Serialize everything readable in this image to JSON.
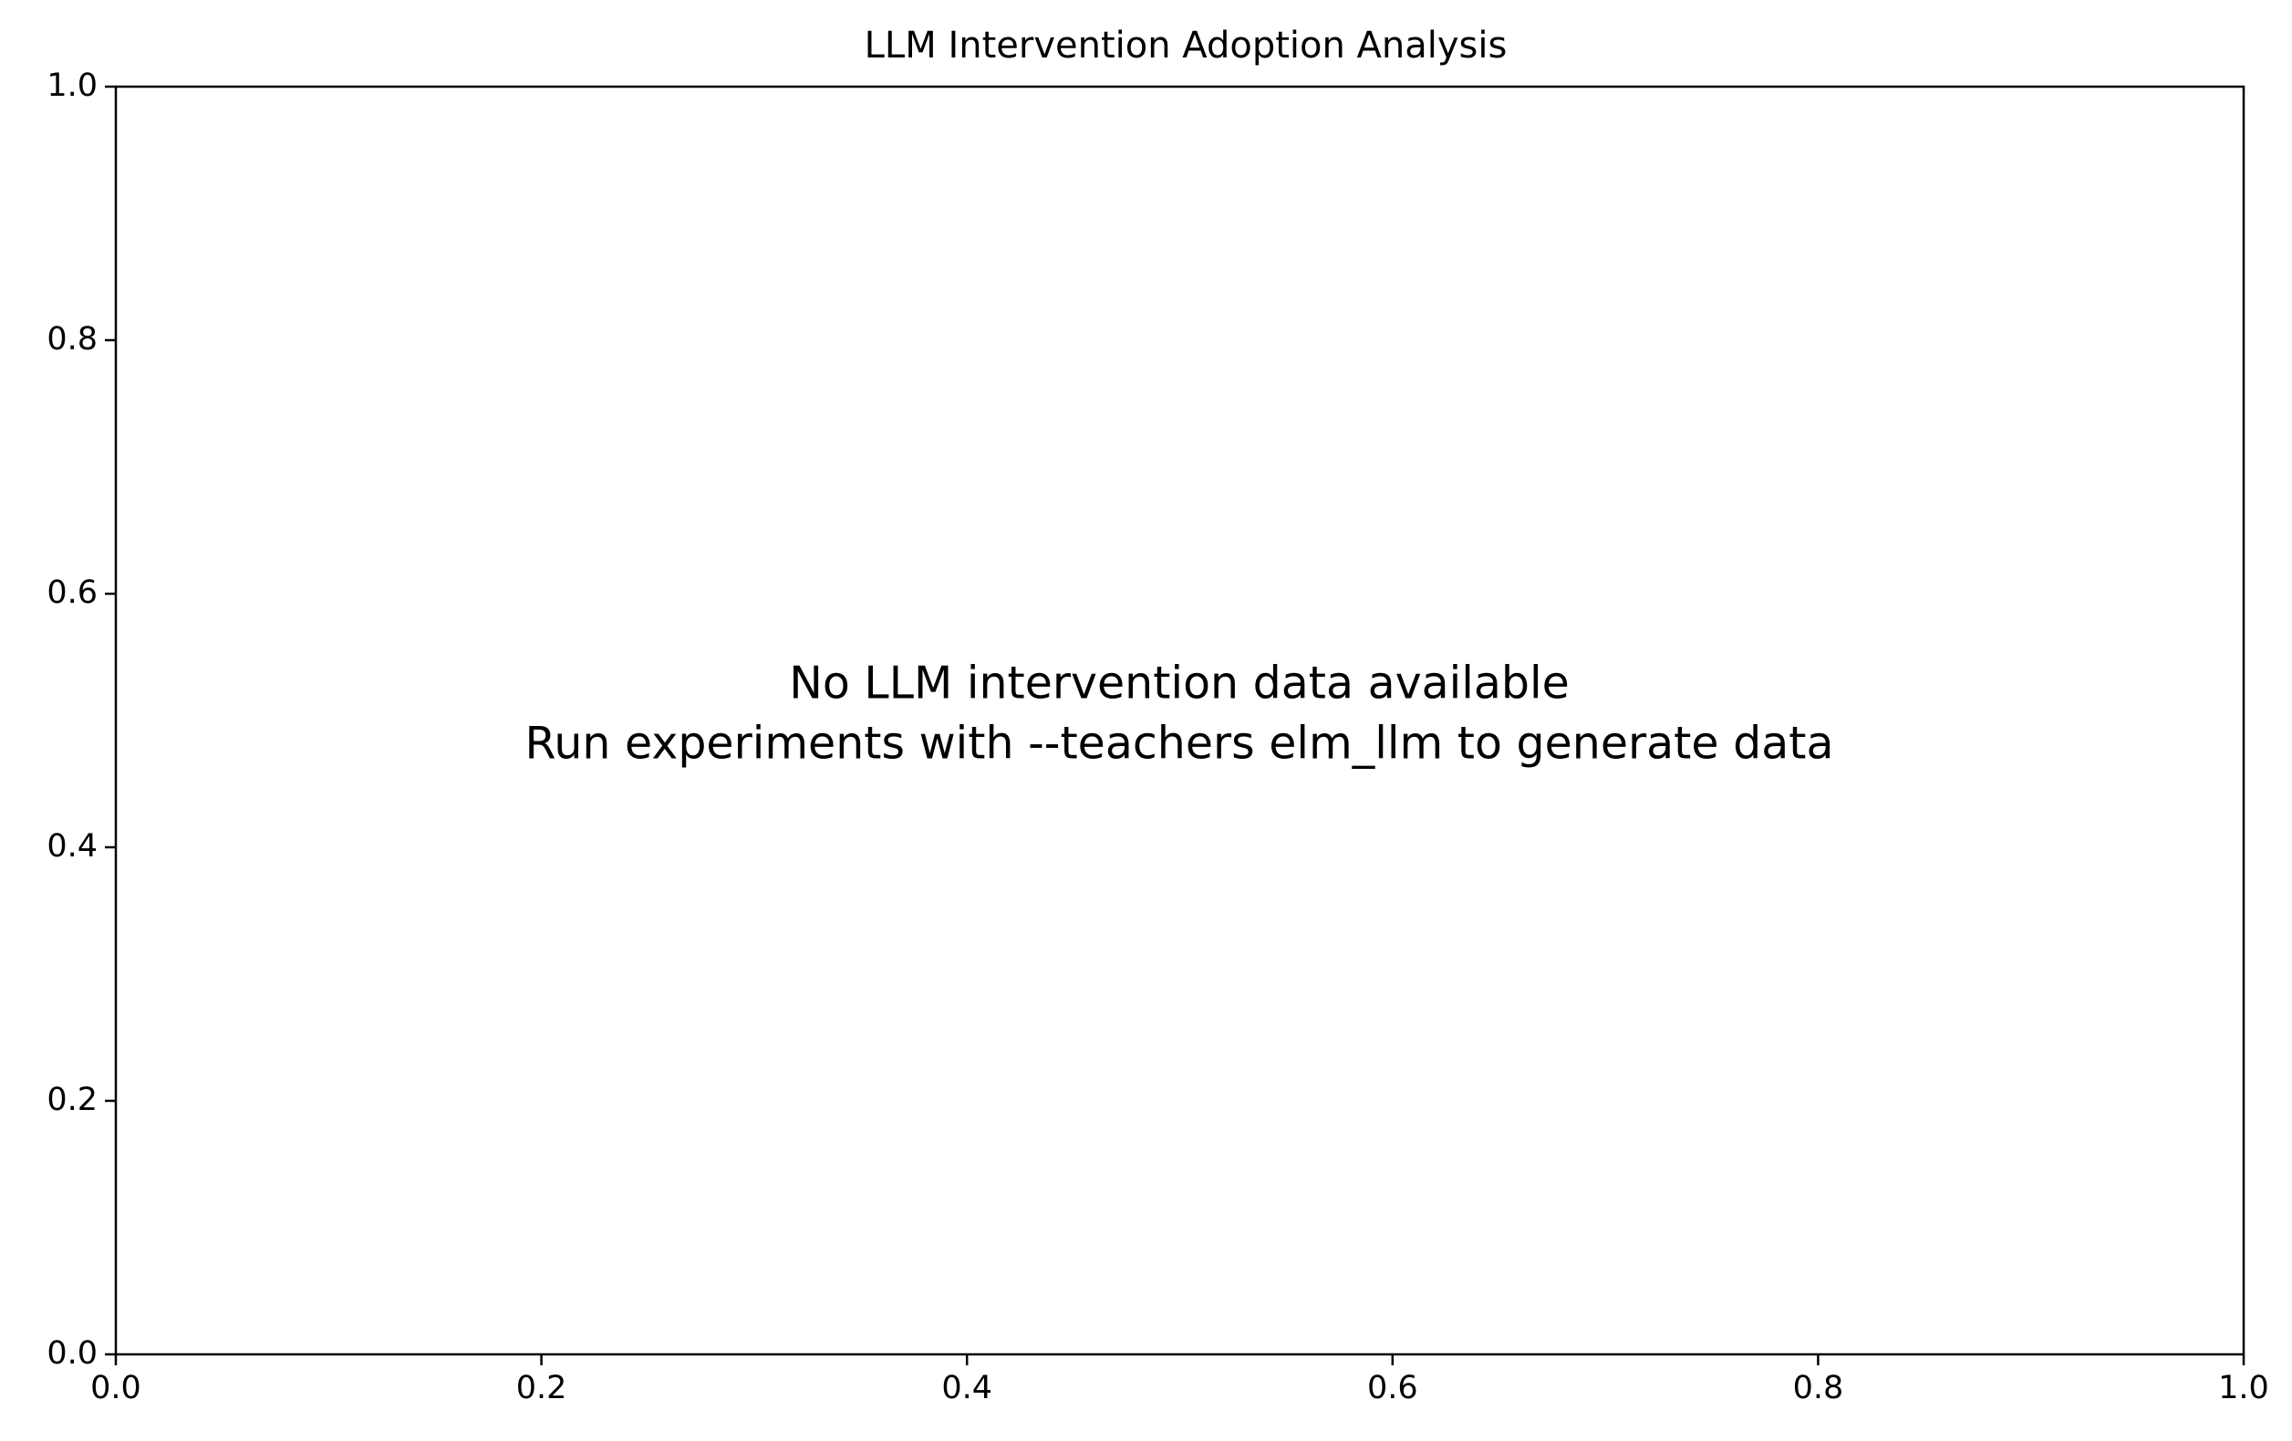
{
  "chart_data": {
    "type": "scatter",
    "title": "LLM Intervention Adoption Analysis",
    "xlabel": "",
    "ylabel": "",
    "xlim": [
      0.0,
      1.0
    ],
    "ylim": [
      0.0,
      1.0
    ],
    "x_ticks": [
      "0.0",
      "0.2",
      "0.4",
      "0.6",
      "0.8",
      "1.0"
    ],
    "y_ticks": [
      "0.0",
      "0.2",
      "0.4",
      "0.6",
      "0.8",
      "1.0"
    ],
    "series": [],
    "grid": false,
    "annotations": [
      "No LLM intervention data available",
      "Run experiments with --teachers elm_llm to generate data"
    ]
  }
}
